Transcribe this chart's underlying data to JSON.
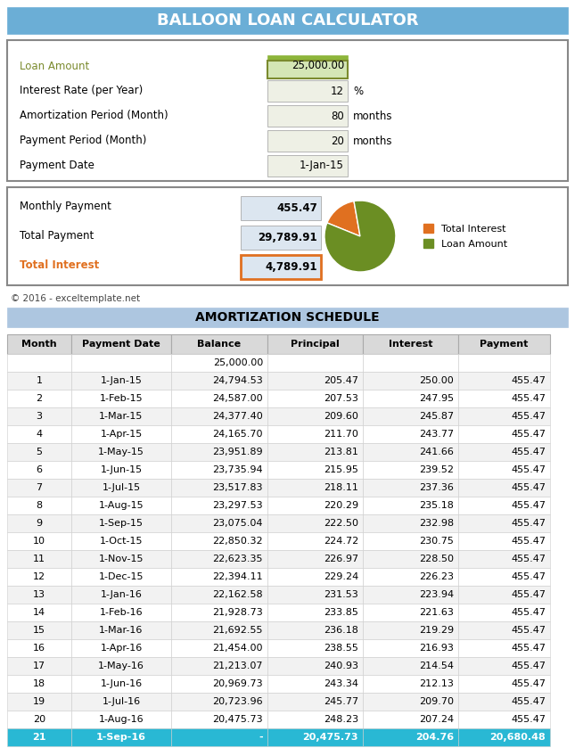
{
  "title": "BALLOON LOAN CALCULATOR",
  "title_bg": "#6baed6",
  "title_color": "white",
  "loan_amount_label": "Loan Amount",
  "loan_amount_value": "25,000.00",
  "loan_amount_label_color": "#7b8b2e",
  "interest_rate_label": "Interest Rate (per Year)",
  "interest_rate_value": "12",
  "interest_rate_unit": "%",
  "amort_period_label": "Amortization Period (Month)",
  "amort_period_value": "80",
  "amort_period_unit": "months",
  "payment_period_label": "Payment Period (Month)",
  "payment_period_value": "20",
  "payment_period_unit": "months",
  "payment_date_label": "Payment Date",
  "payment_date_value": "1-Jan-15",
  "monthly_payment_label": "Monthly Payment",
  "monthly_payment_value": "455.47",
  "total_payment_label": "Total Payment",
  "total_payment_value": "29,789.91",
  "total_interest_label": "Total Interest",
  "total_interest_value": "4,789.91",
  "total_interest_color": "#e07020",
  "pie_colors": [
    "#e07020",
    "#6b8e23"
  ],
  "pie_labels": [
    "Total Interest",
    "Loan Amount"
  ],
  "pie_values": [
    4789.91,
    25000.0
  ],
  "copyright": "© 2016 - exceltemplate.net",
  "amort_title": "AMORTIZATION SCHEDULE",
  "amort_title_bg": "#adc6e0",
  "table_header": [
    "Month",
    "Payment Date",
    "Balance",
    "Principal",
    "Interest",
    "Payment"
  ],
  "table_data": [
    [
      "",
      "",
      "25,000.00",
      "",
      "",
      ""
    ],
    [
      "1",
      "1-Jan-15",
      "24,794.53",
      "205.47",
      "250.00",
      "455.47"
    ],
    [
      "2",
      "1-Feb-15",
      "24,587.00",
      "207.53",
      "247.95",
      "455.47"
    ],
    [
      "3",
      "1-Mar-15",
      "24,377.40",
      "209.60",
      "245.87",
      "455.47"
    ],
    [
      "4",
      "1-Apr-15",
      "24,165.70",
      "211.70",
      "243.77",
      "455.47"
    ],
    [
      "5",
      "1-May-15",
      "23,951.89",
      "213.81",
      "241.66",
      "455.47"
    ],
    [
      "6",
      "1-Jun-15",
      "23,735.94",
      "215.95",
      "239.52",
      "455.47"
    ],
    [
      "7",
      "1-Jul-15",
      "23,517.83",
      "218.11",
      "237.36",
      "455.47"
    ],
    [
      "8",
      "1-Aug-15",
      "23,297.53",
      "220.29",
      "235.18",
      "455.47"
    ],
    [
      "9",
      "1-Sep-15",
      "23,075.04",
      "222.50",
      "232.98",
      "455.47"
    ],
    [
      "10",
      "1-Oct-15",
      "22,850.32",
      "224.72",
      "230.75",
      "455.47"
    ],
    [
      "11",
      "1-Nov-15",
      "22,623.35",
      "226.97",
      "228.50",
      "455.47"
    ],
    [
      "12",
      "1-Dec-15",
      "22,394.11",
      "229.24",
      "226.23",
      "455.47"
    ],
    [
      "13",
      "1-Jan-16",
      "22,162.58",
      "231.53",
      "223.94",
      "455.47"
    ],
    [
      "14",
      "1-Feb-16",
      "21,928.73",
      "233.85",
      "221.63",
      "455.47"
    ],
    [
      "15",
      "1-Mar-16",
      "21,692.55",
      "236.18",
      "219.29",
      "455.47"
    ],
    [
      "16",
      "1-Apr-16",
      "21,454.00",
      "238.55",
      "216.93",
      "455.47"
    ],
    [
      "17",
      "1-May-16",
      "21,213.07",
      "240.93",
      "214.54",
      "455.47"
    ],
    [
      "18",
      "1-Jun-16",
      "20,969.73",
      "243.34",
      "212.13",
      "455.47"
    ],
    [
      "19",
      "1-Jul-16",
      "20,723.96",
      "245.77",
      "209.70",
      "455.47"
    ],
    [
      "20",
      "1-Aug-16",
      "20,475.73",
      "248.23",
      "207.24",
      "455.47"
    ],
    [
      "21",
      "1-Sep-16",
      "-",
      "20,475.73",
      "204.76",
      "20,680.48"
    ]
  ],
  "last_row_bg": "#29b8d4",
  "last_row_color": "white",
  "header_bg": "#d9d9d9",
  "odd_row_bg": "#ffffff",
  "even_row_bg": "#f2f2f2",
  "outer_border": "#555555",
  "input_box_bg_loan": "#d4e6b5",
  "input_box_bg_loan_header": "#8db53a",
  "input_box_bg_other": "#eef0e5",
  "output_box_bg": "#dce6f0",
  "total_interest_border": "#e07020"
}
